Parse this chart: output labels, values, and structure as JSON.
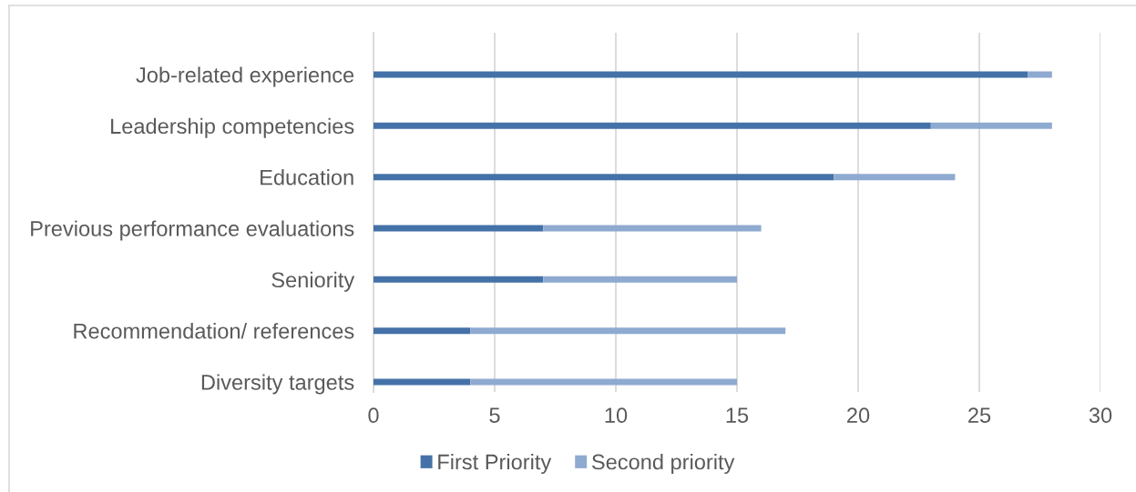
{
  "chart_data": {
    "type": "bar",
    "orientation": "horizontal",
    "stacked": true,
    "categories": [
      "Job-related experience",
      "Leadership competencies",
      "Education",
      "Previous performance evaluations",
      "Seniority",
      "Recommendation/ references",
      "Diversity targets"
    ],
    "series": [
      {
        "name": "First Priority",
        "color": "#4472a8",
        "values": [
          27,
          23,
          19,
          7,
          7,
          4,
          4
        ]
      },
      {
        "name": "Second priority",
        "color": "#8faad0",
        "values": [
          1,
          5,
          5,
          9,
          8,
          13,
          11
        ]
      }
    ],
    "xlim": [
      0,
      30
    ],
    "xticks": [
      0,
      5,
      10,
      15,
      20,
      25,
      30
    ],
    "grid": "x",
    "legend": "bottom"
  }
}
